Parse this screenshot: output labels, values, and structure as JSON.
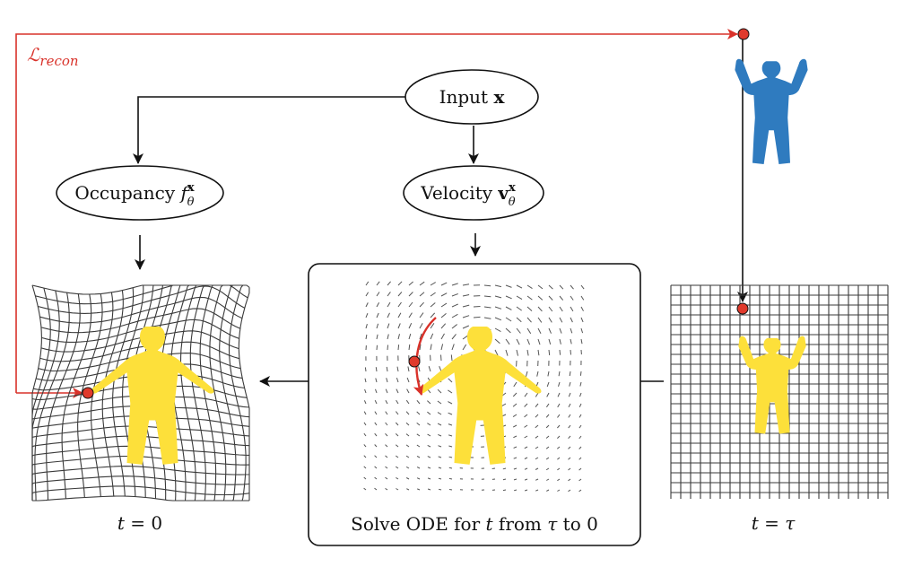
{
  "loss_label": "ℒ",
  "loss_sub": "recon",
  "input_node": {
    "text": "Input ",
    "symbol": "x"
  },
  "occupancy_node": {
    "text": "Occupancy ",
    "symbol": "f",
    "sup": "x",
    "sub": "θ"
  },
  "velocity_node": {
    "text": "Velocity ",
    "symbol": "v",
    "sup": "x",
    "sub": "θ"
  },
  "solve_caption": {
    "pre": "Solve ODE for ",
    "t": "t",
    "mid1": " from ",
    "tau": "τ",
    "mid2": " to ",
    "zero": "0"
  },
  "left_caption": {
    "var": "t",
    "eq": " = ",
    "val": "0"
  },
  "right_caption": {
    "var": "t",
    "eq": " = ",
    "val": "τ"
  },
  "colors": {
    "body_yellow": "#fde03a",
    "body_blue": "#2f7bbf",
    "accent_red": "#d9322a",
    "grid": "#3a3a3a"
  }
}
